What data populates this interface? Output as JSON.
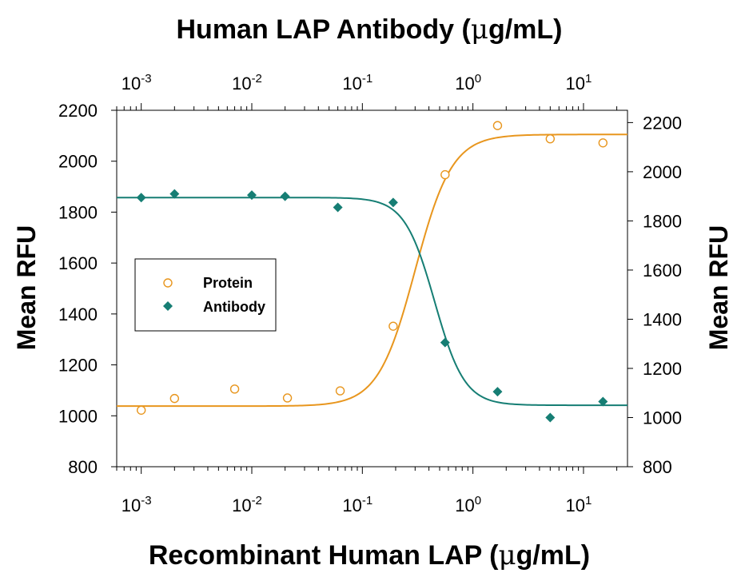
{
  "chart_data": {
    "type": "scatter",
    "top_xlabel_main": "Human LAP Antibody (",
    "top_xlabel_mu": "μ",
    "top_xlabel_end": "g/mL)",
    "bottom_xlabel_main": "Recombinant Human LAP (",
    "bottom_xlabel_mu": "μ",
    "bottom_xlabel_end": "g/mL)",
    "ylabel_left": "Mean RFU",
    "ylabel_right": "Mean RFU",
    "x_scale": "log",
    "xlim": [
      0.0006,
      25
    ],
    "x_tick_base": "10",
    "x_tick_exponents": [
      "-3",
      "-2",
      "-1",
      "0",
      "1"
    ],
    "x_tick_values": [
      0.001,
      0.01,
      0.1,
      1,
      10
    ],
    "left_ylim": [
      800,
      2200
    ],
    "left_yticks": [
      800,
      1000,
      1200,
      1400,
      1600,
      1800,
      2000,
      2200
    ],
    "right_ylim": [
      800,
      2250
    ],
    "right_yticks": [
      800,
      1000,
      1200,
      1400,
      1600,
      1800,
      2000,
      2200
    ],
    "legend": {
      "placement": "left-middle",
      "entries": [
        "Protein",
        "Antibody"
      ]
    },
    "colors": {
      "protein": "#E8961E",
      "antibody": "#167E74"
    },
    "series": [
      {
        "name": "Protein",
        "marker": "open-circle",
        "axis": "left",
        "x": [
          0.001,
          0.002,
          0.007,
          0.021,
          0.063,
          0.19,
          0.56,
          1.67,
          5.0,
          15.0
        ],
        "y": [
          1022,
          1068,
          1105,
          1070,
          1098,
          1352,
          1947,
          2140,
          2088,
          2072
        ],
        "fit": {
          "bottom": 1038,
          "top": 2105,
          "ec50": 0.3,
          "hill": 2.6
        }
      },
      {
        "name": "Antibody",
        "marker": "filled-diamond",
        "axis": "right",
        "x": [
          0.001,
          0.002,
          0.01,
          0.02,
          0.06,
          0.19,
          0.56,
          1.67,
          5.0,
          15.0
        ],
        "y": [
          1895,
          1910,
          1905,
          1900,
          1855,
          1875,
          1305,
          1105,
          1000,
          1065
        ],
        "fit": {
          "bottom": 1050,
          "top": 1895,
          "ec50": 0.45,
          "hill": 3.2
        }
      }
    ]
  }
}
